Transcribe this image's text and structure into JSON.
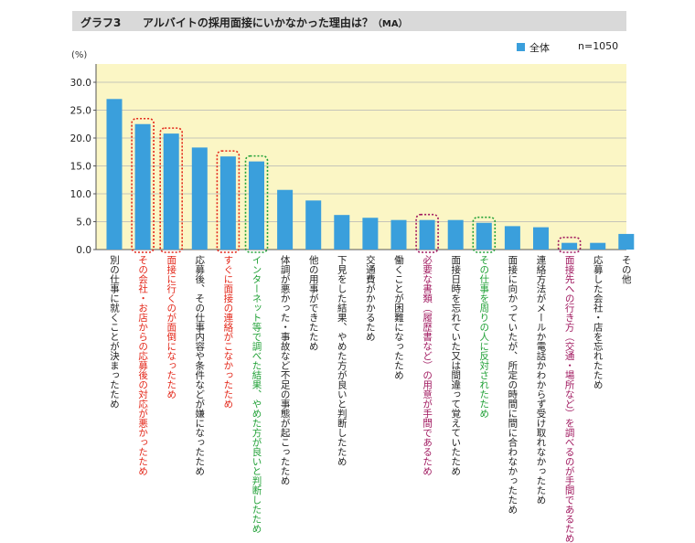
{
  "header": {
    "graph_number": "グラフ3",
    "title": "アルバイトの採用面接にいかなかった理由は？",
    "title_suffix": "（MA）"
  },
  "unit_label": "(%)",
  "legend": {
    "label": "全体",
    "n": "n=1050"
  },
  "colors": {
    "bar": "#3a9fdc",
    "plot_bg": "#fbf6c5",
    "highlight_red": "#e32618",
    "highlight_green": "#1fa035",
    "highlight_purple": "#a0185f"
  },
  "chart_data": {
    "type": "bar",
    "categories": [
      "別の仕事に就くことが決まったため",
      "その会社・お店からの応募後の対応が悪かったため",
      "面接に行くのが面倒になったため",
      "応募後、その仕事内容や条件などが嫌になったため",
      "すぐに面接の連絡がこなかったため",
      "インターネット等で調べた結果、やめた方が良いと判断したため",
      "体調が悪かった・事故など不足の事態が起こったため",
      "他の用事ができたため",
      "下見をした結果、やめた方が良いと判断したため",
      "交通費がかかるため",
      "働くことが困難になったため",
      "必要な書類（履歴書など）の用意が手間であるため",
      "面接日時を忘れていた又は間違って覚えていたため",
      "その仕事を周りの人に反対されたため",
      "面接に向かっていたが、所定の時間に間に合わなかったため",
      "連絡方法がメールか電話かわからず受け取れなかったため",
      "面接先への行き方（交通・場所など）を調べるのが手間であるため",
      "応募した会社・店を忘れたため",
      "その他"
    ],
    "series": [
      {
        "name": "全体",
        "values": [
          27.0,
          22.5,
          20.8,
          18.3,
          16.7,
          15.8,
          10.7,
          8.8,
          6.2,
          5.7,
          5.3,
          5.3,
          5.3,
          4.8,
          4.2,
          4.0,
          1.2,
          1.2,
          2.8
        ]
      }
    ],
    "highlight": [
      "none",
      "red",
      "red",
      "none",
      "red",
      "green",
      "none",
      "none",
      "none",
      "none",
      "none",
      "purple",
      "none",
      "green",
      "none",
      "none",
      "purple",
      "none",
      "none"
    ],
    "ylim": [
      0,
      30
    ],
    "yticks": [
      "0.0",
      "5.0",
      "10.0",
      "15.0",
      "20.0",
      "25.0",
      "30.0"
    ],
    "ylabel": "(%)",
    "grid": true,
    "legend_position": "top-right"
  }
}
